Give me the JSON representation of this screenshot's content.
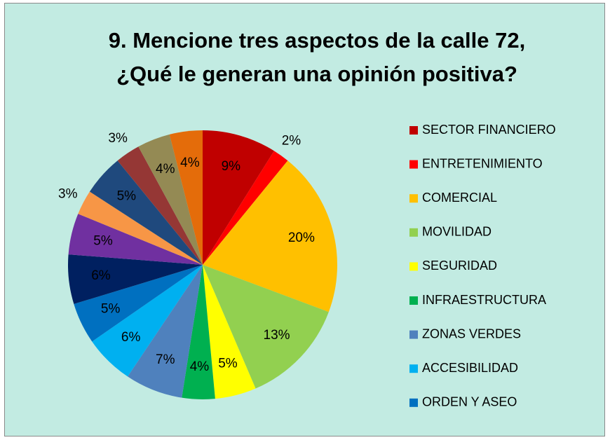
{
  "chart_data": {
    "type": "pie",
    "title": [
      "9.      Mencione tres aspectos de la calle 72,",
      "¿Qué le generan una opinión positiva?"
    ],
    "categories": [
      "SECTOR FINANCIERO",
      "ENTRETENIMIENTO",
      "COMERCIAL",
      "MOVILIDAD",
      "SEGURIDAD",
      "INFRAESTRUCTURA",
      "ZONAS VERDES",
      "ACCESIBILIDAD",
      "ORDEN Y ASEO",
      null,
      null,
      null,
      null,
      null,
      null,
      null
    ],
    "values": [
      9,
      2,
      20,
      13,
      5,
      4,
      7,
      6,
      5,
      6,
      5,
      3,
      5,
      3,
      4,
      4
    ],
    "value_labels": [
      "9%",
      "2%",
      "20%",
      "13%",
      "5%",
      "4%",
      "7%",
      "6%",
      "5%",
      "6%",
      "5%",
      "3%",
      "5%",
      "3%",
      "4%",
      "4%"
    ],
    "colors": [
      "#C00000",
      "#FF0000",
      "#FFC000",
      "#92D050",
      "#FFFF00",
      "#00B050",
      "#4F81BD",
      "#00B0F0",
      "#0070C0",
      "#002060",
      "#7030A0",
      "#F79646",
      "#1F497D",
      "#953735",
      "#948A54",
      "#E46C0A"
    ],
    "legend": "right"
  }
}
